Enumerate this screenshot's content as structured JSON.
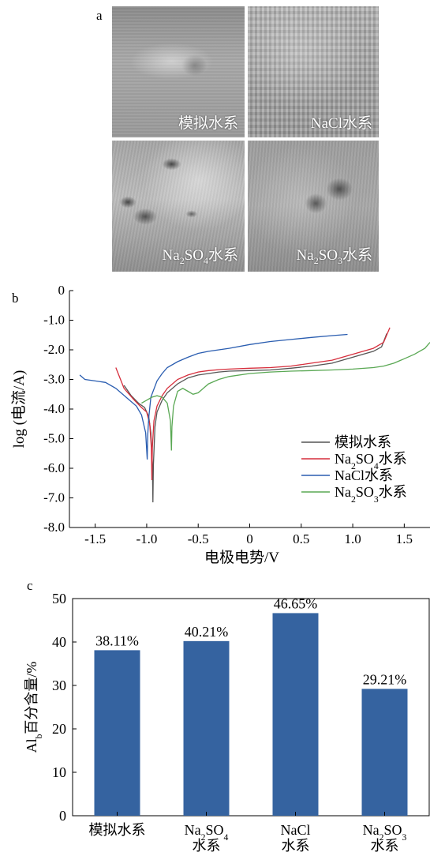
{
  "panel_a": {
    "letter": "a",
    "photos": [
      {
        "label": "模拟水系"
      },
      {
        "label": "NaCl水系"
      },
      {
        "label": "Na2SO4水系",
        "label_parts": [
          "Na",
          "2",
          "SO",
          "4",
          "水系"
        ]
      },
      {
        "label": "Na2SO3水系",
        "label_parts": [
          "Na",
          "2",
          "SO",
          "3",
          "水系"
        ]
      }
    ]
  },
  "chart_data": [
    {
      "panel": "b",
      "type": "line",
      "xlabel": "电极电势/V",
      "ylabel": "log (电流/A)",
      "xlim": [
        -1.75,
        1.75
      ],
      "ylim": [
        -8.0,
        0
      ],
      "xticks": [
        -1.5,
        -1.0,
        -0.5,
        0,
        0.5,
        1.0,
        1.5
      ],
      "xtick_labels": [
        "-1.5",
        "-1.0",
        "-0.5",
        "0",
        "0.5",
        "1.0",
        "1.5"
      ],
      "yticks": [
        0,
        -1.0,
        -2.0,
        -3.0,
        -4.0,
        -5.0,
        -6.0,
        -7.0,
        -8.0
      ],
      "ytick_labels": [
        "0",
        "-1.0",
        "-2.0",
        "-3.0",
        "-4.0",
        "-5.0",
        "-6.0",
        "-7.0",
        "-8.0"
      ],
      "legend_position": "bottom-right",
      "series": [
        {
          "name": "模拟水系",
          "name_parts": [
            "模拟水系"
          ],
          "color": "#555555",
          "x": [
            -1.22,
            -1.15,
            -1.08,
            -1.02,
            -0.98,
            -0.96,
            -0.945,
            -0.94,
            -0.935,
            -0.92,
            -0.9,
            -0.85,
            -0.8,
            -0.7,
            -0.6,
            -0.5,
            -0.4,
            -0.3,
            -0.2,
            0,
            0.2,
            0.4,
            0.6,
            0.8,
            0.9,
            1.0,
            1.1,
            1.2,
            1.28,
            1.33
          ],
          "y": [
            -3.2,
            -3.55,
            -3.8,
            -3.95,
            -4.25,
            -4.8,
            -5.8,
            -7.15,
            -5.9,
            -4.6,
            -4.1,
            -3.7,
            -3.45,
            -3.15,
            -2.95,
            -2.85,
            -2.8,
            -2.75,
            -2.72,
            -2.7,
            -2.68,
            -2.62,
            -2.55,
            -2.45,
            -2.35,
            -2.25,
            -2.15,
            -2.05,
            -1.9,
            -1.45
          ]
        },
        {
          "name": "Na2SO4水系",
          "name_parts": [
            "Na",
            "2",
            "SO",
            "4",
            "水系"
          ],
          "color": "#d62e3c",
          "x": [
            -1.3,
            -1.22,
            -1.12,
            -1.05,
            -1.0,
            -0.97,
            -0.955,
            -0.95,
            -0.945,
            -0.93,
            -0.9,
            -0.85,
            -0.8,
            -0.7,
            -0.6,
            -0.5,
            -0.4,
            -0.3,
            -0.2,
            0,
            0.2,
            0.4,
            0.6,
            0.8,
            0.9,
            1.0,
            1.1,
            1.2,
            1.3,
            1.36
          ],
          "y": [
            -2.6,
            -3.3,
            -3.7,
            -3.95,
            -4.1,
            -4.5,
            -5.3,
            -6.4,
            -5.3,
            -4.4,
            -3.9,
            -3.55,
            -3.3,
            -3.0,
            -2.85,
            -2.75,
            -2.7,
            -2.67,
            -2.65,
            -2.62,
            -2.6,
            -2.55,
            -2.45,
            -2.35,
            -2.25,
            -2.15,
            -2.05,
            -1.95,
            -1.75,
            -1.25
          ]
        },
        {
          "name": "NaCl水系",
          "name_parts": [
            "NaCl水系"
          ],
          "color": "#2a5db0",
          "x": [
            -1.65,
            -1.6,
            -1.5,
            -1.4,
            -1.3,
            -1.2,
            -1.1,
            -1.05,
            -1.01,
            -0.995,
            -0.99,
            -0.98,
            -0.96,
            -0.9,
            -0.85,
            -0.8,
            -0.7,
            -0.6,
            -0.5,
            -0.4,
            -0.2,
            0,
            0.2,
            0.4,
            0.6,
            0.8,
            0.95
          ],
          "y": [
            -2.85,
            -3.0,
            -3.05,
            -3.1,
            -3.3,
            -3.6,
            -3.9,
            -4.2,
            -4.8,
            -5.7,
            -4.9,
            -4.3,
            -3.6,
            -3.05,
            -2.8,
            -2.6,
            -2.4,
            -2.25,
            -2.12,
            -2.05,
            -1.95,
            -1.82,
            -1.72,
            -1.65,
            -1.58,
            -1.52,
            -1.48
          ]
        },
        {
          "name": "Na2SO3水系",
          "name_parts": [
            "Na",
            "2",
            "SO",
            "3",
            "水系"
          ],
          "color": "#5aa854",
          "x": [
            -1.05,
            -1.0,
            -0.95,
            -0.9,
            -0.85,
            -0.8,
            -0.77,
            -0.76,
            -0.755,
            -0.74,
            -0.7,
            -0.65,
            -0.6,
            -0.55,
            -0.5,
            -0.45,
            -0.4,
            -0.3,
            -0.2,
            0,
            0.2,
            0.4,
            0.6,
            0.8,
            1.0,
            1.2,
            1.3,
            1.4,
            1.5,
            1.6,
            1.7,
            1.75
          ],
          "y": [
            -3.8,
            -3.7,
            -3.6,
            -3.55,
            -3.6,
            -3.8,
            -4.4,
            -5.4,
            -4.6,
            -3.9,
            -3.4,
            -3.3,
            -3.4,
            -3.5,
            -3.45,
            -3.3,
            -3.15,
            -3.0,
            -2.9,
            -2.8,
            -2.75,
            -2.72,
            -2.7,
            -2.68,
            -2.65,
            -2.6,
            -2.55,
            -2.45,
            -2.3,
            -2.15,
            -1.95,
            -1.75
          ]
        }
      ]
    },
    {
      "panel": "c",
      "type": "bar",
      "categories": [
        "模拟水系",
        "Na2SO4水系",
        "NaCl水系",
        "Na2SO3水系"
      ],
      "category_lines": [
        [
          {
            "parts": [
              "模拟水系"
            ]
          }
        ],
        [
          {
            "parts": [
              "Na",
              "2",
              "SO",
              "4"
            ]
          },
          {
            "parts": [
              "水系"
            ]
          }
        ],
        [
          {
            "parts": [
              "NaCl"
            ]
          },
          {
            "parts": [
              "水系"
            ]
          }
        ],
        [
          {
            "parts": [
              "Na",
              "2",
              "SO",
              "3"
            ]
          },
          {
            "parts": [
              "水系"
            ]
          }
        ]
      ],
      "values": [
        38.11,
        40.21,
        46.65,
        29.21
      ],
      "data_labels": [
        "38.11%",
        "40.21%",
        "46.65%",
        "29.21%"
      ],
      "ylabel": "Alb百分含量/%",
      "ylabel_parts": [
        "Al",
        "b",
        "百分含量/%"
      ],
      "ylim": [
        0,
        50
      ],
      "yticks": [
        0,
        10,
        20,
        30,
        40,
        50
      ],
      "ytick_labels": [
        "0",
        "10",
        "20",
        "30",
        "40",
        "50"
      ],
      "bar_color": "#3563a0"
    }
  ],
  "panel_letters": {
    "a": "a",
    "b": "b",
    "c": "c"
  }
}
